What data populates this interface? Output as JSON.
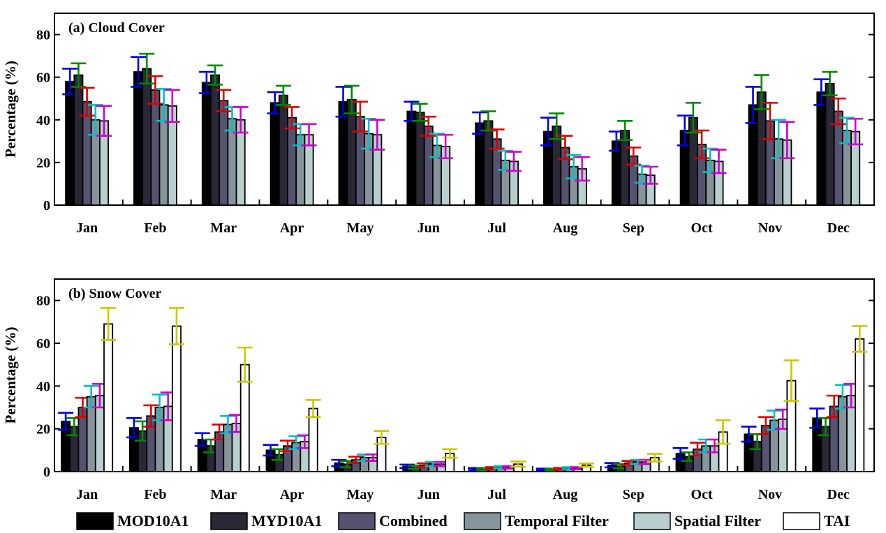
{
  "chart_data": [
    {
      "type": "bar",
      "title": "(a) Cloud Cover",
      "ylabel": "Percentage (%)",
      "xlabel": "",
      "ylim": [
        0,
        90
      ],
      "yticks": [
        0,
        20,
        40,
        60,
        80
      ],
      "categories": [
        "Jan",
        "Feb",
        "Mar",
        "Apr",
        "May",
        "Jun",
        "Jul",
        "Aug",
        "Sep",
        "Oct",
        "Nov",
        "Dec"
      ],
      "series": [
        {
          "name": "MOD10A1",
          "values": [
            58,
            62.5,
            57.5,
            48,
            48.5,
            44,
            38.5,
            34.5,
            30,
            35,
            47,
            53
          ],
          "errors": [
            6,
            7,
            5,
            5,
            7,
            4.5,
            5,
            6.5,
            4.5,
            7,
            8.5,
            6
          ]
        },
        {
          "name": "MYD10A1",
          "values": [
            61,
            64,
            61,
            51.5,
            49.5,
            43.5,
            39.5,
            37,
            35,
            41,
            53,
            57
          ],
          "errors": [
            5.5,
            7,
            4.5,
            4.5,
            6.5,
            4,
            4.5,
            6,
            4.5,
            7,
            8,
            5.5
          ]
        },
        {
          "name": "Combined",
          "values": [
            48.5,
            54,
            49,
            41,
            41.5,
            37,
            31,
            27,
            23,
            28.5,
            39.5,
            44
          ],
          "errors": [
            6.5,
            6.5,
            5,
            5,
            7,
            4.5,
            4.5,
            5.5,
            4,
            6.5,
            8.5,
            6
          ]
        },
        {
          "name": "Temporal Filter",
          "values": [
            40,
            47,
            40.5,
            33,
            33.5,
            28,
            21,
            18,
            14.5,
            21,
            31,
            35
          ],
          "errors": [
            7,
            7.5,
            5.5,
            5,
            7,
            5.5,
            4.5,
            5.5,
            4,
            5.5,
            9,
            6
          ]
        },
        {
          "name": "Spatial Filter",
          "values": [
            39.5,
            46.5,
            40,
            33,
            33,
            27.5,
            20.5,
            17,
            14,
            20.5,
            30.5,
            34.5
          ],
          "errors": [
            7,
            7.5,
            6,
            5,
            7,
            5.5,
            4.5,
            5.5,
            4,
            5.5,
            8.5,
            6
          ]
        }
      ]
    },
    {
      "type": "bar",
      "title": "(b) Snow Cover",
      "ylabel": "Percentage (%)",
      "xlabel": "",
      "ylim": [
        0,
        90
      ],
      "yticks": [
        0,
        20,
        40,
        60,
        80
      ],
      "categories": [
        "Jan",
        "Feb",
        "Mar",
        "Apr",
        "May",
        "Jun",
        "Jul",
        "Aug",
        "Sep",
        "Oct",
        "Nov",
        "Dec"
      ],
      "series": [
        {
          "name": "MOD10A1",
          "values": [
            23.5,
            20.5,
            15,
            10,
            4,
            2.5,
            1.2,
            1,
            3,
            8.5,
            17.5,
            25
          ],
          "errors": [
            4,
            4.5,
            3,
            2.5,
            1.5,
            0.8,
            0.5,
            0.4,
            1,
            2.5,
            3.5,
            4.5
          ]
        },
        {
          "name": "MYD10A1",
          "values": [
            21,
            19,
            12,
            8,
            3.5,
            2,
            1.1,
            0.9,
            2.5,
            7,
            14,
            21
          ],
          "errors": [
            4,
            4.5,
            3,
            2.5,
            1.5,
            0.8,
            0.5,
            0.4,
            1,
            2,
            3.5,
            4
          ]
        },
        {
          "name": "Combined",
          "values": [
            30,
            26,
            18.5,
            12,
            5.5,
            3,
            1.6,
            1.3,
            4,
            10.5,
            21.5,
            30.5
          ],
          "errors": [
            4.5,
            5,
            3.5,
            2.5,
            1.5,
            0.9,
            0.5,
            0.4,
            1,
            3,
            4,
            5
          ]
        },
        {
          "name": "Temporal Filter",
          "values": [
            35,
            30,
            22,
            13.5,
            6.5,
            3.5,
            2,
            1.6,
            4.5,
            12,
            24,
            35
          ],
          "errors": [
            5,
            6,
            4,
            3,
            1.5,
            1,
            0.5,
            0.5,
            1,
            3,
            4.5,
            5.5
          ]
        },
        {
          "name": "Spatial Filter",
          "values": [
            35.5,
            30.5,
            22.5,
            14,
            6.5,
            3.5,
            2,
            1.6,
            4.5,
            12,
            24.5,
            35.5
          ],
          "errors": [
            5.5,
            6.5,
            4,
            3,
            1.5,
            1,
            0.5,
            0.5,
            1,
            3,
            4.5,
            5.5
          ]
        },
        {
          "name": "TAI",
          "values": [
            69,
            68,
            50,
            29.5,
            16,
            8.5,
            3.5,
            3,
            6.5,
            18.5,
            42.5,
            62
          ],
          "errors": [
            7.5,
            8.5,
            8,
            4,
            3,
            2,
            1.2,
            0.8,
            1.8,
            5.5,
            9.5,
            6
          ]
        }
      ]
    }
  ],
  "legend": [
    {
      "name": "MOD10A1",
      "color": "#000000"
    },
    {
      "name": "MYD10A1",
      "color": "#2a2837"
    },
    {
      "name": "Combined",
      "color": "#555370"
    },
    {
      "name": "Temporal Filter",
      "color": "#86949c"
    },
    {
      "name": "Spatial Filter",
      "color": "#b9cfcf"
    },
    {
      "name": "TAI",
      "color": "#ffffff"
    }
  ],
  "error_colors": [
    "#0000dd",
    "#008800",
    "#dd0000",
    "#00c0c0",
    "#cc00cc",
    "#c8c800"
  ]
}
